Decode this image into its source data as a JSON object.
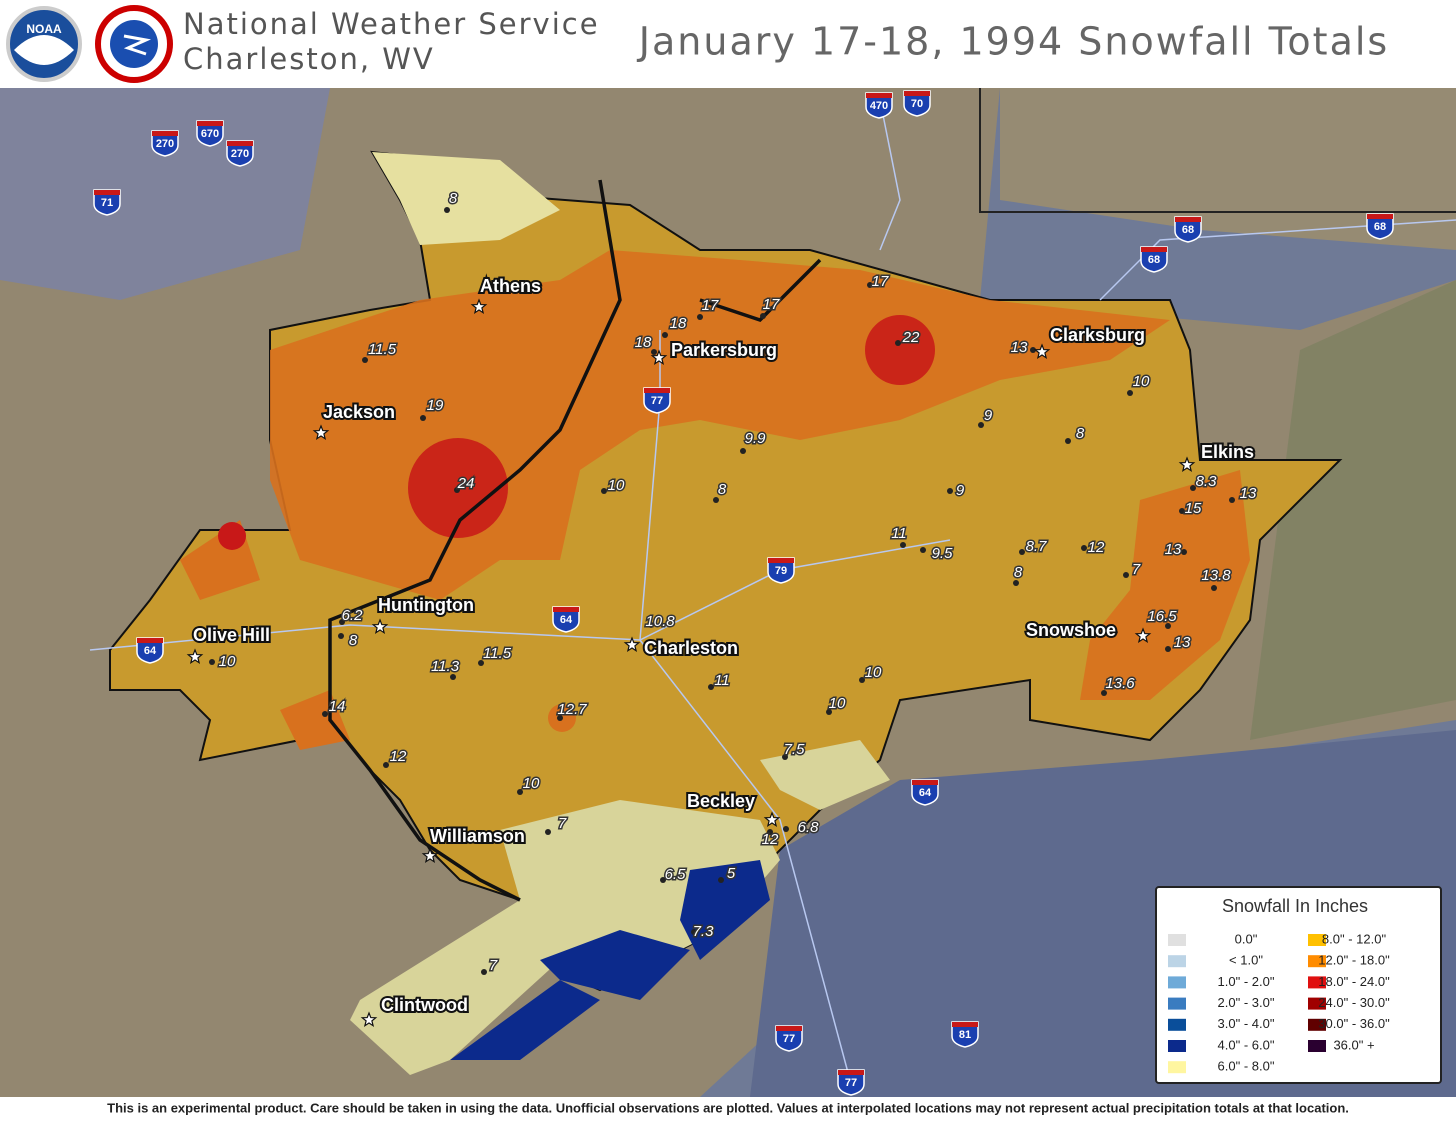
{
  "header": {
    "office_line1": "National Weather Service",
    "office_line2": "Charleston, WV",
    "title": "January 17-18, 1994 Snowfall Totals",
    "logo_noaa": "NOAA"
  },
  "cities": [
    "Athens",
    "Parkersburg",
    "Clarksburg",
    "Jackson",
    "Elkins",
    "Huntington",
    "Olive Hill",
    "Charleston",
    "Snowshoe",
    "Beckley",
    "Williamson",
    "Clintwood"
  ],
  "observations": [
    8,
    11.5,
    19,
    24,
    17,
    17,
    18,
    18,
    17,
    22,
    13,
    10,
    9,
    8,
    9.9,
    10,
    8,
    9,
    8.3,
    13,
    15,
    11,
    9.5,
    8.7,
    12,
    13,
    7,
    13.8,
    8,
    16.5,
    13,
    13.6,
    6.2,
    8,
    10,
    10.8,
    11.5,
    11.3,
    11,
    10,
    10,
    12.7,
    14,
    7.5,
    12,
    10,
    7,
    6.8,
    12,
    6.5,
    5,
    7.3,
    7
  ],
  "interstates": [
    470,
    70,
    670,
    270,
    270,
    71,
    68,
    68,
    68,
    77,
    79,
    64,
    64,
    64,
    77,
    81,
    77
  ],
  "legend": {
    "title": "Snowfall In Inches",
    "items": [
      {
        "label": "0.0\"",
        "color": "#e0e0e0"
      },
      {
        "label": "< 1.0\"",
        "color": "#bcd4e6"
      },
      {
        "label": "1.0\" - 2.0\"",
        "color": "#6eaad8"
      },
      {
        "label": "2.0\" - 3.0\"",
        "color": "#3a7cc0"
      },
      {
        "label": "3.0\" - 4.0\"",
        "color": "#0a4e9a"
      },
      {
        "label": "4.0\" - 6.0\"",
        "color": "#0c2a8c"
      },
      {
        "label": "6.0\" - 8.0\"",
        "color": "#fff6a0"
      },
      {
        "label": "8.0\" - 12.0\"",
        "color": "#ffc000"
      },
      {
        "label": "12.0\" - 18.0\"",
        "color": "#ff8c00"
      },
      {
        "label": "18.0\" - 24.0\"",
        "color": "#e01010"
      },
      {
        "label": "24.0\" - 30.0\"",
        "color": "#a00000"
      },
      {
        "label": "30.0\" - 36.0\"",
        "color": "#600000"
      },
      {
        "label": "36.0\" +",
        "color": "#2a0030"
      }
    ]
  },
  "footer": "This is an experimental product. Care should be taken in using the data. Unofficial observations are plotted. Values at interpolated locations may not represent actual precipitation totals at that location."
}
